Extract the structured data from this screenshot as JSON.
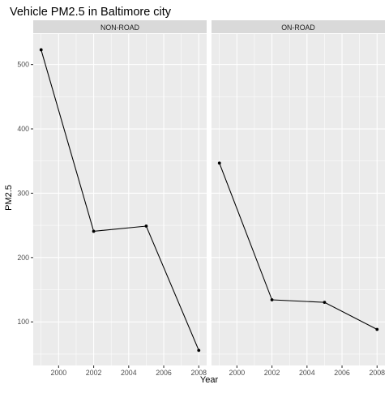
{
  "chart_data": {
    "type": "line",
    "title": "Vehicle PM2.5 in Baltimore city",
    "xlabel": "Year",
    "ylabel": "PM2.5",
    "xlim": [
      1998.55,
      2008.45
    ],
    "ylim": [
      32.3,
      547.4
    ],
    "x_ticks": [
      2000,
      2002,
      2004,
      2006,
      2008
    ],
    "x_tick_labels": [
      "2000",
      "2002",
      "2004",
      "2006",
      "2008"
    ],
    "y_ticks": [
      100,
      200,
      300,
      400,
      500
    ],
    "y_tick_labels": [
      "100",
      "200",
      "300",
      "400",
      "500"
    ],
    "grid": true,
    "legend": "none",
    "series_color": "#000000",
    "panel_background": "#ebebeb",
    "strip_background": "#d9d9d9",
    "facets": [
      {
        "label": "NON-ROAD",
        "x": [
          1999,
          2002,
          2005,
          2008
        ],
        "y": [
          522.9,
          240.8,
          248.9,
          55.8
        ]
      },
      {
        "label": "ON-ROAD",
        "x": [
          1999,
          2002,
          2005,
          2008
        ],
        "y": [
          346.8,
          134.3,
          130.4,
          88.3
        ]
      }
    ]
  }
}
